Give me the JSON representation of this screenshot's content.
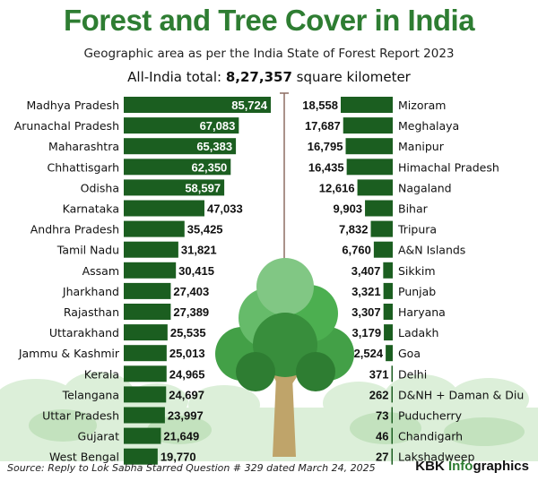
{
  "title": "Forest and Tree Cover in India",
  "subtitle": "Geographic area as per the India State of Forest Report 2023",
  "total_prefix": "All-India total: ",
  "total_value": "8,27,357",
  "total_suffix": " square kilometer",
  "source": "Source: Reply to Lok Sabha Starred Question # 329 dated March 24, 2025",
  "brand_name": "KBK ",
  "brand_accent": "Info",
  "brand_rest": "graphics",
  "colors": {
    "bar": "#1b5e20",
    "title": "#2e7d32",
    "tree_canopy": "#4caf50",
    "background_trees": "#c8e6c9"
  },
  "chart_data": [
    {
      "type": "bar",
      "orientation": "horizontal",
      "unit": "square kilometer",
      "categories": [
        "Madhya Pradesh",
        "Arunachal Pradesh",
        "Maharashtra",
        "Chhattisgarh",
        "Odisha",
        "Karnataka",
        "Andhra Pradesh",
        "Tamil Nadu",
        "Assam",
        "Jharkhand",
        "Rajasthan",
        "Uttarakhand",
        "Jammu & Kashmir",
        "Kerala",
        "Telangana",
        "Uttar Pradesh",
        "Gujarat",
        "West Bengal"
      ],
      "values": [
        85724,
        67083,
        65383,
        62350,
        58597,
        47033,
        35425,
        31821,
        30415,
        27403,
        27389,
        25535,
        25013,
        24965,
        24697,
        23997,
        21649,
        19770
      ],
      "labels": [
        "85,724",
        "67,083",
        "65,383",
        "62,350",
        "58,597",
        "47,033",
        "35,425",
        "31,821",
        "30,415",
        "27,403",
        "27,389",
        "25,535",
        "25,013",
        "24,965",
        "24,697",
        "23,997",
        "21,649",
        "19,770"
      ]
    },
    {
      "type": "bar",
      "orientation": "horizontal",
      "unit": "square kilometer",
      "categories": [
        "Mizoram",
        "Meghalaya",
        "Manipur",
        "Himachal  Pradesh",
        "Nagaland",
        "Bihar",
        "Tripura",
        "A&N Islands",
        "Sikkim",
        "Punjab",
        "Haryana",
        "Ladakh",
        "Goa",
        "Delhi",
        "D&NH + Daman & Diu",
        "Puducherry",
        "Chandigarh",
        "Lakshadweep"
      ],
      "values": [
        18558,
        17687,
        16795,
        16435,
        12616,
        9903,
        7832,
        6760,
        3407,
        3321,
        3307,
        3179,
        2524,
        371,
        262,
        73,
        46,
        27
      ],
      "labels": [
        "18,558",
        "17,687",
        "16,795",
        "16,435",
        "12,616",
        "9,903",
        "7,832",
        "6,760",
        "3,407",
        "3,321",
        "3,307",
        "3,179",
        "2,524",
        "371",
        "262",
        "73",
        "46",
        "27"
      ]
    }
  ]
}
